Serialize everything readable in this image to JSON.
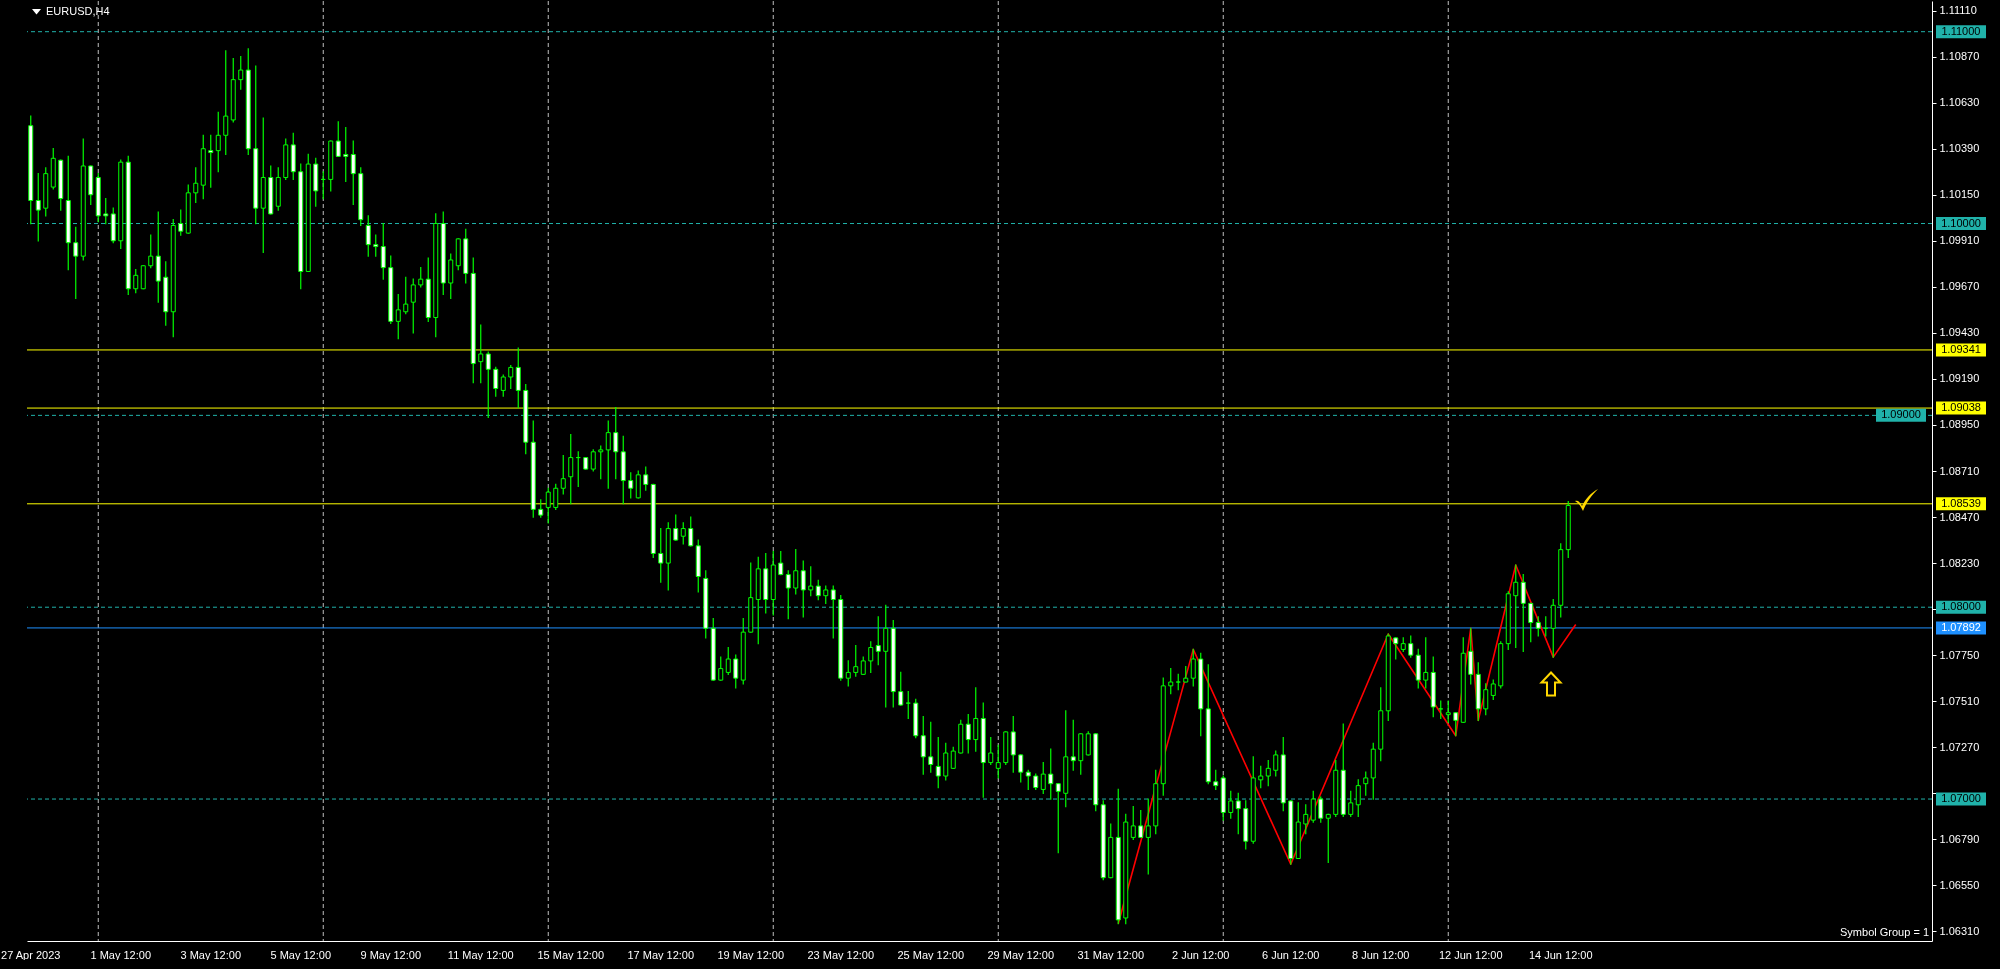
{
  "chart_data": {
    "type": "candlestick",
    "title": "EURUSD,H4",
    "annotations": [
      "Symbol Group = 1"
    ],
    "categories": [
      "27 Apr 2023",
      null,
      null,
      null,
      null,
      null,
      null,
      null,
      null,
      null,
      null,
      null,
      "1 May 12:00",
      null,
      null,
      null,
      null,
      null,
      null,
      null,
      null,
      null,
      null,
      null,
      "3 May 12:00",
      null,
      null,
      null,
      null,
      null,
      null,
      null,
      null,
      null,
      null,
      null,
      "5 May 12:00",
      null,
      null,
      null,
      null,
      null,
      null,
      null,
      null,
      null,
      null,
      null,
      "9 May 12:00",
      null,
      null,
      null,
      null,
      null,
      null,
      null,
      null,
      null,
      null,
      null,
      "11 May 12:00",
      null,
      null,
      null,
      null,
      null,
      null,
      null,
      null,
      null,
      null,
      null,
      "15 May 12:00",
      null,
      null,
      null,
      null,
      null,
      null,
      null,
      null,
      null,
      null,
      null,
      "17 May 12:00",
      null,
      null,
      null,
      null,
      null,
      null,
      null,
      null,
      null,
      null,
      null,
      "19 May 12:00",
      null,
      null,
      null,
      null,
      null,
      null,
      null,
      null,
      null,
      null,
      null,
      "23 May 12:00",
      null,
      null,
      null,
      null,
      null,
      null,
      null,
      null,
      null,
      null,
      null,
      "25 May 12:00",
      null,
      null,
      null,
      null,
      null,
      null,
      null,
      null,
      null,
      null,
      null,
      "29 May 12:00",
      null,
      null,
      null,
      null,
      null,
      null,
      null,
      null,
      null,
      null,
      null,
      "31 May 12:00",
      null,
      null,
      null,
      null,
      null,
      null,
      null,
      null,
      null,
      null,
      null,
      "2 Jun 12:00",
      null,
      null,
      null,
      null,
      null,
      null,
      null,
      null,
      null,
      null,
      null,
      "6 Jun 12:00",
      null,
      null,
      null,
      null,
      null,
      null,
      null,
      null,
      null,
      null,
      null,
      "8 Jun 12:00",
      null,
      null,
      null,
      null,
      null,
      null,
      null,
      null,
      null,
      null,
      null,
      "12 Jun 12:00",
      null,
      null,
      null,
      null,
      null,
      null,
      null,
      null,
      null,
      null,
      null,
      "14 Jun 12:00",
      null,
      null,
      null,
      null,
      null,
      null,
      null,
      null,
      null,
      null,
      null,
      null,
      null,
      null,
      null,
      null,
      null,
      null,
      null,
      null,
      null,
      null,
      null,
      null,
      null,
      null,
      null,
      null,
      null,
      null,
      null,
      null,
      null,
      null,
      null,
      null,
      null,
      null,
      null,
      null,
      null,
      null,
      null,
      null,
      null,
      null,
      null,
      null,
      null
    ],
    "ohlc": [
      [
        1.1051,
        1.1056,
        1.1,
        1.1012
      ],
      [
        1.1012,
        1.1026,
        1.0991,
        1.1007
      ],
      [
        1.1008,
        1.1029,
        1.1004,
        1.1026
      ],
      [
        1.1019,
        1.1039,
        1.1018,
        1.1034
      ],
      [
        1.1033,
        1.1033,
        1.1007,
        1.1013
      ],
      [
        1.1012,
        1.1035,
        1.0976,
        1.099
      ],
      [
        1.099,
        1.0998,
        1.0961,
        1.0983
      ],
      [
        1.0983,
        1.1044,
        1.0981,
        1.103
      ],
      [
        1.103,
        1.103,
        1.101,
        1.1015
      ],
      [
        1.1024,
        1.1026,
        1.1001,
        1.1004
      ],
      [
        1.1005,
        1.1013,
        1.1,
        1.1004
      ],
      [
        1.1005,
        1.1008,
        1.099,
        1.0991
      ],
      [
        1.0991,
        1.1033,
        1.0987,
        1.1032
      ],
      [
        1.1032,
        1.1035,
        1.0963,
        1.0966
      ],
      [
        1.0966,
        1.0976,
        1.0964,
        1.0973
      ],
      [
        1.0966,
        1.0978,
        1.0966,
        1.0978
      ],
      [
        1.0978,
        1.0994,
        1.0977,
        1.0983
      ],
      [
        1.0983,
        1.1006,
        1.0959,
        1.097
      ],
      [
        1.0972,
        1.098,
        1.0947,
        1.0954
      ],
      [
        1.0954,
        1.1002,
        1.0941,
        1.0999
      ],
      [
        1.1,
        1.1007,
        1.0994,
        1.0996
      ],
      [
        1.0995,
        1.102,
        1.0995,
        1.1016
      ],
      [
        1.1016,
        1.1029,
        1.1011,
        1.1021
      ],
      [
        1.102,
        1.1046,
        1.1013,
        1.1039
      ],
      [
        1.1038,
        1.1046,
        1.1019,
        1.1037
      ],
      [
        1.1038,
        1.1058,
        1.1027,
        1.1046
      ],
      [
        1.1046,
        1.109,
        1.1036,
        1.1056
      ],
      [
        1.1054,
        1.1086,
        1.1053,
        1.1075
      ],
      [
        1.1075,
        1.1087,
        1.107,
        1.108
      ],
      [
        1.108,
        1.1091,
        1.1036,
        1.1039
      ],
      [
        1.1039,
        1.1082,
        1.1,
        1.1008
      ],
      [
        1.1008,
        1.1055,
        1.0985,
        1.1024
      ],
      [
        1.1024,
        1.103,
        1.1005,
        1.1005
      ],
      [
        1.1009,
        1.1029,
        1.1007,
        1.1024
      ],
      [
        1.1024,
        1.1044,
        1.1023,
        1.1041
      ],
      [
        1.1041,
        1.1047,
        1.1023,
        1.1027
      ],
      [
        1.1027,
        1.1031,
        1.0966,
        1.0975
      ],
      [
        1.0975,
        1.1036,
        1.0975,
        1.1031
      ],
      [
        1.1031,
        1.1034,
        1.1009,
        1.1017
      ],
      [
        1.1023,
        1.1027,
        1.1013,
        1.1023
      ],
      [
        1.1023,
        1.1043,
        1.1017,
        1.1043
      ],
      [
        1.1043,
        1.1053,
        1.1035,
        1.1035
      ],
      [
        1.1036,
        1.105,
        1.1022,
        1.1035
      ],
      [
        1.1036,
        1.1043,
        1.101,
        1.1026
      ],
      [
        1.1026,
        1.1029,
        1.0999,
        1.1002
      ],
      [
        1.0999,
        1.1004,
        1.0983,
        1.0989
      ],
      [
        1.0989,
        1.0994,
        1.0983,
        1.0988
      ],
      [
        1.0988,
        1.1,
        1.0971,
        1.0977
      ],
      [
        1.0977,
        1.0983,
        1.0948,
        1.0949
      ],
      [
        1.0949,
        1.0963,
        1.094,
        1.0955
      ],
      [
        1.0954,
        1.0972,
        1.0953,
        1.0958
      ],
      [
        1.0959,
        1.0971,
        1.0943,
        1.0968
      ],
      [
        1.0968,
        1.0977,
        1.0967,
        1.0971
      ],
      [
        1.0971,
        1.0982,
        1.0949,
        1.0951
      ],
      [
        1.0951,
        1.1005,
        1.0941,
        1.1
      ],
      [
        1.1,
        1.1006,
        1.0963,
        1.0969
      ],
      [
        1.0969,
        1.0984,
        1.0961,
        1.0981
      ],
      [
        1.0978,
        1.0992,
        1.0976,
        1.0992
      ],
      [
        1.0992,
        1.0997,
        1.0969,
        1.0974
      ],
      [
        1.0974,
        1.0982,
        1.0917,
        1.0927
      ],
      [
        1.0928,
        1.0947,
        1.0917,
        1.0932
      ],
      [
        1.0932,
        1.0933,
        1.0899,
        1.0924
      ],
      [
        1.0924,
        1.0925,
        1.091,
        1.0914
      ],
      [
        1.0913,
        1.0921,
        1.091,
        1.092
      ],
      [
        1.092,
        1.0926,
        1.0914,
        1.0925
      ],
      [
        1.0925,
        1.0935,
        1.0904,
        1.0913
      ],
      [
        1.0913,
        1.0916,
        1.088,
        1.0886
      ],
      [
        1.0886,
        1.0897,
        1.0847,
        1.0851
      ],
      [
        1.0851,
        1.0856,
        1.0847,
        1.0848
      ],
      [
        1.0852,
        1.0862,
        1.0844,
        1.086
      ],
      [
        1.0852,
        1.0864,
        1.0851,
        1.0862
      ],
      [
        1.0862,
        1.0879,
        1.0859,
        1.0867
      ],
      [
        1.0868,
        1.089,
        1.0854,
        1.0878
      ],
      [
        1.0878,
        1.0881,
        1.0863,
        1.0878
      ],
      [
        1.0878,
        1.0878,
        1.0872,
        1.0872
      ],
      [
        1.0872,
        1.0882,
        1.0871,
        1.0881
      ],
      [
        1.0881,
        1.0884,
        1.0867,
        1.0882
      ],
      [
        1.0882,
        1.0897,
        1.0862,
        1.0891
      ],
      [
        1.0891,
        1.0904,
        1.0867,
        1.0881
      ],
      [
        1.0881,
        1.0889,
        1.0854,
        1.0866
      ],
      [
        1.0866,
        1.087,
        1.0857,
        1.0862
      ],
      [
        1.0857,
        1.0871,
        1.0857,
        1.0869
      ],
      [
        1.0869,
        1.0873,
        1.0861,
        1.0864
      ],
      [
        1.0864,
        1.0864,
        1.0826,
        1.0828
      ],
      [
        1.0828,
        1.0841,
        1.0813,
        1.0823
      ],
      [
        1.0823,
        1.0844,
        1.0809,
        1.0841
      ],
      [
        1.0841,
        1.0848,
        1.0835,
        1.0835
      ],
      [
        1.0837,
        1.0844,
        1.0833,
        1.0841
      ],
      [
        1.0841,
        1.0847,
        1.0832,
        1.0832
      ],
      [
        1.0832,
        1.0835,
        1.0808,
        1.0816
      ],
      [
        1.0815,
        1.0819,
        1.0784,
        1.0789
      ],
      [
        1.0789,
        1.0794,
        1.0762,
        1.0762
      ],
      [
        1.0762,
        1.0774,
        1.0762,
        1.0768
      ],
      [
        1.0766,
        1.0779,
        1.0765,
        1.0773
      ],
      [
        1.0773,
        1.0775,
        1.0758,
        1.0763
      ],
      [
        1.0762,
        1.0794,
        1.076,
        1.0787
      ],
      [
        1.0787,
        1.0823,
        1.0787,
        1.0805
      ],
      [
        1.0804,
        1.0826,
        1.0781,
        1.082
      ],
      [
        1.082,
        1.0828,
        1.0797,
        1.0804
      ],
      [
        1.0804,
        1.0829,
        1.0796,
        1.0822
      ],
      [
        1.0823,
        1.0829,
        1.0817,
        1.0817
      ],
      [
        1.0817,
        1.0819,
        1.0794,
        1.081
      ],
      [
        1.081,
        1.083,
        1.0807,
        1.0819
      ],
      [
        1.0819,
        1.0824,
        1.0795,
        1.0809
      ],
      [
        1.0809,
        1.0821,
        1.0806,
        1.0811
      ],
      [
        1.0811,
        1.0814,
        1.0804,
        1.0806
      ],
      [
        1.0806,
        1.0811,
        1.0802,
        1.0809
      ],
      [
        1.0809,
        1.0811,
        1.0784,
        1.0804
      ],
      [
        1.0804,
        1.0806,
        1.0762,
        1.0763
      ],
      [
        1.0763,
        1.0772,
        1.0759,
        1.0766
      ],
      [
        1.0766,
        1.078,
        1.0764,
        1.0769
      ],
      [
        1.0765,
        1.0774,
        1.0765,
        1.0772
      ],
      [
        1.0772,
        1.0782,
        1.0766,
        1.0779
      ],
      [
        1.078,
        1.0795,
        1.077,
        1.0777
      ],
      [
        1.0777,
        1.0801,
        1.0748,
        1.0789
      ],
      [
        1.0789,
        1.0793,
        1.0748,
        1.0756
      ],
      [
        1.0756,
        1.0766,
        1.0749,
        1.0749
      ],
      [
        1.075,
        1.0756,
        1.0742,
        1.075
      ],
      [
        1.075,
        1.0752,
        1.0732,
        1.0733
      ],
      [
        1.0733,
        1.0743,
        1.0713,
        1.0722
      ],
      [
        1.0722,
        1.074,
        1.0714,
        1.0718
      ],
      [
        1.0717,
        1.0732,
        1.0706,
        1.0712
      ],
      [
        1.0712,
        1.0729,
        1.071,
        1.0724
      ],
      [
        1.0716,
        1.0727,
        1.0716,
        1.0725
      ],
      [
        1.0724,
        1.0741,
        1.0724,
        1.0739
      ],
      [
        1.0739,
        1.0744,
        1.0724,
        1.0731
      ],
      [
        1.0731,
        1.0758,
        1.0725,
        1.0742
      ],
      [
        1.0742,
        1.075,
        1.0701,
        1.0719
      ],
      [
        1.0719,
        1.0732,
        1.0718,
        1.0724
      ],
      [
        1.0716,
        1.0728,
        1.0711,
        1.0719
      ],
      [
        1.0719,
        1.0735,
        1.0718,
        1.0735
      ],
      [
        1.0735,
        1.0743,
        1.0714,
        1.0723
      ],
      [
        1.0723,
        1.0723,
        1.0709,
        1.0714
      ],
      [
        1.0714,
        1.0715,
        1.0705,
        1.0712
      ],
      [
        1.0712,
        1.0713,
        1.0705,
        1.0706
      ],
      [
        1.0705,
        1.0719,
        1.0703,
        1.0713
      ],
      [
        1.0713,
        1.0726,
        1.07,
        1.0708
      ],
      [
        1.0708,
        1.0708,
        1.0672,
        1.0704
      ],
      [
        1.0703,
        1.0746,
        1.0696,
        1.0722
      ],
      [
        1.0722,
        1.0741,
        1.0715,
        1.072
      ],
      [
        1.072,
        1.0734,
        1.0713,
        1.0734
      ],
      [
        1.0723,
        1.0735,
        1.0723,
        1.0734
      ],
      [
        1.0734,
        1.0734,
        1.0694,
        1.0697
      ],
      [
        1.0697,
        1.0699,
        1.0658,
        1.0659
      ],
      [
        1.0659,
        1.0687,
        1.0659,
        1.068
      ],
      [
        1.068,
        1.0705,
        1.0635,
        1.0637
      ],
      [
        1.0638,
        1.0692,
        1.0635,
        1.0688
      ],
      [
        1.068,
        1.0696,
        1.0679,
        1.0686
      ],
      [
        1.0686,
        1.0694,
        1.068,
        1.068
      ],
      [
        1.068,
        1.07,
        1.0661,
        1.0686
      ],
      [
        1.0686,
        1.0715,
        1.0682,
        1.0708
      ],
      [
        1.0708,
        1.0763,
        1.0702,
        1.0759
      ],
      [
        1.0759,
        1.0768,
        1.0755,
        1.0761
      ],
      [
        1.0761,
        1.0765,
        1.0757,
        1.0761
      ],
      [
        1.0761,
        1.0769,
        1.0761,
        1.0763
      ],
      [
        1.0763,
        1.0778,
        1.0759,
        1.0773
      ],
      [
        1.0773,
        1.0776,
        1.0733,
        1.0747
      ],
      [
        1.0747,
        1.077,
        1.0708,
        1.0709
      ],
      [
        1.0709,
        1.0715,
        1.0705,
        1.0707
      ],
      [
        1.0711,
        1.0712,
        1.0689,
        1.0693
      ],
      [
        1.0693,
        1.0704,
        1.069,
        1.0699
      ],
      [
        1.0699,
        1.0703,
        1.0682,
        1.0695
      ],
      [
        1.0695,
        1.0699,
        1.0674,
        1.0678
      ],
      [
        1.0678,
        1.0722,
        1.0677,
        1.0711
      ],
      [
        1.071,
        1.0717,
        1.0706,
        1.0712
      ],
      [
        1.0712,
        1.072,
        1.0707,
        1.0716
      ],
      [
        1.0715,
        1.0725,
        1.0712,
        1.0723
      ],
      [
        1.0723,
        1.0732,
        1.0694,
        1.0698
      ],
      [
        1.0699,
        1.0699,
        1.0666,
        1.0669
      ],
      [
        1.0669,
        1.0698,
        1.0669,
        1.0688
      ],
      [
        1.0687,
        1.0697,
        1.0682,
        1.0692
      ],
      [
        1.0689,
        1.0704,
        1.0688,
        1.07
      ],
      [
        1.07,
        1.0701,
        1.0688,
        1.069
      ],
      [
        1.069,
        1.0692,
        1.0667,
        1.0692
      ],
      [
        1.0692,
        1.072,
        1.0691,
        1.0715
      ],
      [
        1.0715,
        1.0739,
        1.0691,
        1.0692
      ],
      [
        1.0692,
        1.0704,
        1.0691,
        1.0698
      ],
      [
        1.0697,
        1.071,
        1.0691,
        1.0707
      ],
      [
        1.0708,
        1.0714,
        1.0702,
        1.0711
      ],
      [
        1.0711,
        1.0729,
        1.07,
        1.0726
      ],
      [
        1.0726,
        1.0758,
        1.072,
        1.0746
      ],
      [
        1.0746,
        1.0786,
        1.0741,
        1.0785
      ],
      [
        1.0784,
        1.0784,
        1.0773,
        1.0781
      ],
      [
        1.0778,
        1.0784,
        1.0777,
        1.0781
      ],
      [
        1.0781,
        1.0785,
        1.0774,
        1.0775
      ],
      [
        1.0775,
        1.0778,
        1.0758,
        1.0762
      ],
      [
        1.0762,
        1.0784,
        1.0758,
        1.0766
      ],
      [
        1.0766,
        1.0774,
        1.0743,
        1.0748
      ],
      [
        1.0747,
        1.0751,
        1.0742,
        1.0747
      ],
      [
        1.0744,
        1.0751,
        1.074,
        1.0745
      ],
      [
        1.0745,
        1.0745,
        1.0733,
        1.0741
      ],
      [
        1.074,
        1.0784,
        1.074,
        1.0776
      ],
      [
        1.0777,
        1.0789,
        1.076,
        1.0765
      ],
      [
        1.0765,
        1.0771,
        1.0741,
        1.0747
      ],
      [
        1.0747,
        1.076,
        1.0744,
        1.0757
      ],
      [
        1.0754,
        1.0762,
        1.0752,
        1.076
      ],
      [
        1.0759,
        1.0782,
        1.0758,
        1.0781
      ],
      [
        1.0781,
        1.0808,
        1.0778,
        1.0807
      ],
      [
        1.0806,
        1.0822,
        1.0779,
        1.0813
      ],
      [
        1.0813,
        1.0817,
        1.0777,
        1.0802
      ],
      [
        1.0802,
        1.0802,
        1.0782,
        1.0792
      ],
      [
        1.0792,
        1.0795,
        1.0785,
        1.0789
      ],
      [
        1.0789,
        1.0795,
        1.0785,
        1.0789
      ],
      [
        1.0789,
        1.0804,
        1.0774,
        1.0801
      ],
      [
        1.0801,
        1.0833,
        1.0795,
        1.083
      ],
      [
        1.083,
        1.0855,
        1.0826,
        1.0853
      ],
      null,
      null,
      null,
      null,
      null,
      null,
      null,
      null,
      null,
      null,
      null,
      null,
      null,
      null,
      null,
      null,
      null,
      null,
      null,
      null,
      null,
      null,
      null,
      null,
      null,
      null,
      null,
      null,
      null,
      null,
      null,
      null,
      null,
      null,
      null,
      null,
      null,
      null,
      null,
      null,
      null,
      null,
      null,
      null,
      null,
      null,
      null,
      null
    ],
    "color": "#00ff00",
    "colors": [
      "#ffffff",
      "#ffffff",
      "#000000",
      "#000000",
      "#ffffff",
      "#ffffff",
      "#ffffff",
      "#000000",
      "#ffffff",
      "#ffffff",
      "#ffffff",
      "#ffffff",
      "#000000",
      "#ffffff",
      "#000000",
      "#000000",
      "#000000",
      "#ffffff",
      "#ffffff",
      "#000000",
      "#ffffff",
      "#000000",
      "#000000",
      "#000000",
      "#ffffff",
      "#000000",
      "#000000",
      "#000000",
      "#000000",
      "#ffffff",
      "#ffffff",
      "#000000",
      "#ffffff",
      "#000000",
      "#000000",
      "#ffffff",
      "#ffffff",
      "#000000",
      "#ffffff",
      "#00ff00",
      "#000000",
      "#ffffff",
      "#ffffff",
      "#ffffff",
      "#ffffff",
      "#ffffff",
      "#ffffff",
      "#ffffff",
      "#ffffff",
      "#000000",
      "#000000",
      "#000000",
      "#000000",
      "#ffffff",
      "#000000",
      "#ffffff",
      "#000000",
      "#000000",
      "#ffffff",
      "#ffffff",
      "#000000",
      "#ffffff",
      "#ffffff",
      "#000000",
      "#000000",
      "#ffffff",
      "#ffffff",
      "#ffffff",
      "#ffffff",
      "#000000",
      "#000000",
      "#000000",
      "#000000",
      "#00ff00",
      "#ffffff",
      "#000000",
      "#000000",
      "#000000",
      "#ffffff",
      "#ffffff",
      "#ffffff",
      "#000000",
      "#ffffff",
      "#ffffff",
      "#ffffff",
      "#000000",
      "#ffffff",
      "#000000",
      "#ffffff",
      "#ffffff",
      "#ffffff",
      "#ffffff",
      "#000000",
      "#000000",
      "#ffffff",
      "#000000",
      "#000000",
      "#000000",
      "#ffffff",
      "#000000",
      "#ffffff",
      "#ffffff",
      "#000000",
      "#ffffff",
      "#000000",
      "#ffffff",
      "#000000",
      "#ffffff",
      "#ffffff",
      "#000000",
      "#000000",
      "#000000",
      "#000000",
      "#ffffff",
      "#000000",
      "#ffffff",
      "#ffffff",
      "#00ff00",
      "#ffffff",
      "#ffffff",
      "#ffffff",
      "#ffffff",
      "#000000",
      "#000000",
      "#000000",
      "#ffffff",
      "#000000",
      "#ffffff",
      "#000000",
      "#000000",
      "#000000",
      "#ffffff",
      "#ffffff",
      "#ffffff",
      "#ffffff",
      "#000000",
      "#ffffff",
      "#ffffff",
      "#000000",
      "#ffffff",
      "#000000",
      "#000000",
      "#ffffff",
      "#ffffff",
      "#000000",
      "#ffffff",
      "#000000",
      "#000000",
      "#ffffff",
      "#000000",
      "#000000",
      "#000000",
      "#000000",
      "#00ff00",
      "#000000",
      "#000000",
      "#ffffff",
      "#ffffff",
      "#ffffff",
      "#ffffff",
      "#000000",
      "#ffffff",
      "#ffffff",
      "#000000",
      "#000000",
      "#000000",
      "#000000",
      "#ffffff",
      "#ffffff",
      "#000000",
      "#000000",
      "#000000",
      "#ffffff",
      "#000000",
      "#000000",
      "#ffffff",
      "#000000",
      "#000000",
      "#000000",
      "#000000",
      "#000000",
      "#000000",
      "#ffffff",
      "#000000",
      "#ffffff",
      "#ffffff",
      "#000000",
      "#ffffff",
      "#00ff00",
      "#000000",
      "#ffffff",
      "#000000",
      "#ffffff",
      "#ffffff",
      "#000000",
      "#000000",
      "#000000",
      "#000000",
      "#000000",
      "#ffffff",
      "#ffffff",
      "#ffffff",
      "#00ff00",
      "#000000",
      "#000000",
      "#000000",
      null,
      null,
      null,
      null,
      null,
      null,
      null,
      null,
      null,
      null,
      null,
      null,
      null,
      null,
      null,
      null,
      null,
      null,
      null,
      null,
      null,
      null,
      null,
      null,
      null,
      null,
      null,
      null,
      null,
      null,
      null,
      null,
      null,
      null,
      null,
      null,
      null,
      null,
      null,
      null,
      null,
      null,
      null,
      null,
      null,
      null,
      null,
      null
    ],
    "series": [
      {
        "type": "line",
        "color": "#ff0000",
        "values": [
          null,
          null,
          null,
          null,
          null,
          null,
          null,
          null,
          null,
          null,
          null,
          null,
          null,
          null,
          null,
          null,
          null,
          null,
          null,
          null,
          null,
          null,
          null,
          null,
          null,
          null,
          null,
          null,
          null,
          null,
          null,
          null,
          null,
          null,
          null,
          null,
          null,
          null,
          null,
          null,
          null,
          null,
          null,
          null,
          null,
          null,
          null,
          null,
          null,
          null,
          null,
          null,
          null,
          null,
          null,
          null,
          null,
          null,
          null,
          null,
          null,
          null,
          null,
          null,
          null,
          null,
          null,
          null,
          null,
          null,
          null,
          null,
          null,
          null,
          null,
          null,
          null,
          null,
          null,
          null,
          null,
          null,
          null,
          null,
          null,
          null,
          null,
          null,
          null,
          null,
          null,
          null,
          null,
          null,
          null,
          null,
          null,
          null,
          null,
          null,
          null,
          null,
          null,
          null,
          null,
          null,
          null,
          null,
          null,
          null,
          null,
          null,
          null,
          null,
          null,
          null,
          null,
          null,
          null,
          null,
          null,
          null,
          null,
          null,
          null,
          null,
          null,
          null,
          null,
          null,
          null,
          null,
          null,
          null,
          null,
          null,
          null,
          null,
          null,
          null,
          null,
          null,
          null,
          null,
          null,
          1.0635,
          null,
          null,
          null,
          null,
          null,
          null,
          null,
          null,
          null,
          1.0778,
          null,
          null,
          null,
          null,
          null,
          null,
          null,
          null,
          null,
          null,
          null,
          null,
          1.0666,
          null,
          null,
          null,
          null,
          null,
          null,
          null,
          null,
          null,
          null,
          null,
          null,
          1.0786,
          null,
          null,
          null,
          null,
          null,
          null,
          null,
          null,
          1.0733,
          null,
          1.0789,
          1.0741,
          null,
          null,
          null,
          null,
          1.0822,
          null,
          null,
          null,
          null,
          1.0774,
          null,
          null,
          1.0791,
          null,
          null,
          null,
          null,
          null,
          null,
          null,
          null,
          null,
          null,
          null,
          null,
          null,
          null,
          null,
          null,
          null,
          null,
          null,
          null,
          null,
          null,
          null,
          null,
          null,
          null,
          null,
          null,
          null,
          null,
          null,
          null,
          null,
          null,
          null,
          null,
          null,
          null,
          null,
          null,
          null,
          null,
          null,
          null,
          null,
          null,
          null
        ]
      }
    ],
    "ylim": [
      1.0626,
      1.1116
    ],
    "yticks": [
      {
        "value": 1.0631,
        "label": "1.06310"
      },
      {
        "value": 1.0655,
        "label": "1.06550"
      },
      {
        "value": 1.0679,
        "label": "1.06790"
      },
      {
        "value": 1.0703,
        "label": null
      },
      {
        "value": 1.0727,
        "label": "1.07270"
      },
      {
        "value": 1.0751,
        "label": "1.07510"
      },
      {
        "value": 1.0775,
        "label": "1.07750"
      },
      {
        "value": 1.0799,
        "label": null
      },
      {
        "value": 1.0823,
        "label": "1.08230"
      },
      {
        "value": 1.0847,
        "label": "1.08470"
      },
      {
        "value": 1.0871,
        "label": "1.08710"
      },
      {
        "value": 1.0895,
        "label": "1.08950"
      },
      {
        "value": 1.0919,
        "label": "1.09190"
      },
      {
        "value": 1.0943,
        "label": "1.09430"
      },
      {
        "value": 1.0967,
        "label": "1.09670"
      },
      {
        "value": 1.0991,
        "label": "1.09910"
      },
      {
        "value": 1.1015,
        "label": "1.10150"
      },
      {
        "value": 1.1039,
        "label": "1.10390"
      },
      {
        "value": 1.1063,
        "label": "1.10630"
      },
      {
        "value": 1.1087,
        "label": "1.10870"
      },
      {
        "value": 1.1111,
        "label": "1.11110"
      }
    ],
    "ref_lines": [
      {
        "axis": "y",
        "value": 1.09341,
        "label": "1.09341",
        "color": "#ffff00",
        "line_style": "solid"
      },
      {
        "axis": "y",
        "value": 1.09038,
        "label": "1.09038",
        "color": "#ffff00",
        "line_style": "solid"
      },
      {
        "axis": "y",
        "value": 1.08539,
        "label": "1.08539",
        "color": "#ffff00",
        "line_style": "solid"
      },
      {
        "axis": "y",
        "value": 1.07892,
        "label": "1.07892",
        "color": "#1e90ff",
        "line_style": "solid"
      },
      {
        "axis": "y",
        "value": 1.11,
        "label": "1.11000",
        "color": "#20b2aa",
        "line_style": "dashed"
      },
      {
        "axis": "y",
        "value": 1.1,
        "label": "1.10000",
        "color": "#20b2aa",
        "line_style": "dashed"
      },
      {
        "axis": "y",
        "value": 1.09,
        "label": "1.09000",
        "color": "#20b2aa",
        "line_style": "dashed"
      },
      {
        "axis": "y",
        "value": 1.08,
        "label": "1.08000",
        "color": "#20b2aa",
        "line_style": "dashed"
      },
      {
        "axis": "y",
        "value": 1.07,
        "label": "1.07000",
        "color": "#20b2aa",
        "line_style": "dashed"
      }
    ]
  }
}
